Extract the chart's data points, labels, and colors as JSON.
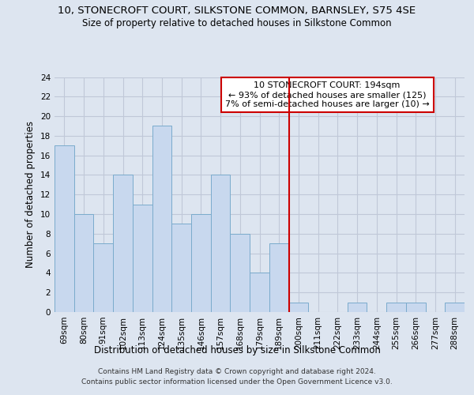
{
  "title": "10, STONECROFT COURT, SILKSTONE COMMON, BARNSLEY, S75 4SE",
  "subtitle": "Size of property relative to detached houses in Silkstone Common",
  "xlabel": "Distribution of detached houses by size in Silkstone Common",
  "ylabel": "Number of detached properties",
  "footer_line1": "Contains HM Land Registry data © Crown copyright and database right 2024.",
  "footer_line2": "Contains public sector information licensed under the Open Government Licence v3.0.",
  "categories": [
    "69sqm",
    "80sqm",
    "91sqm",
    "102sqm",
    "113sqm",
    "124sqm",
    "135sqm",
    "146sqm",
    "157sqm",
    "168sqm",
    "179sqm",
    "189sqm",
    "200sqm",
    "211sqm",
    "222sqm",
    "233sqm",
    "244sqm",
    "255sqm",
    "266sqm",
    "277sqm",
    "288sqm"
  ],
  "values": [
    17,
    10,
    7,
    14,
    11,
    19,
    9,
    10,
    14,
    8,
    4,
    7,
    1,
    0,
    0,
    1,
    0,
    1,
    1,
    0,
    1
  ],
  "bar_color": "#c8d8ee",
  "bar_edge_color": "#7aabcc",
  "grid_color": "#c0c8d8",
  "annotation_text": "10 STONECROFT COURT: 194sqm\n← 93% of detached houses are smaller (125)\n7% of semi-detached houses are larger (10) →",
  "annotation_box_facecolor": "#ffffff",
  "annotation_box_edgecolor": "#cc0000",
  "vline_color": "#cc0000",
  "vline_x_idx": 11.5,
  "ylim": [
    0,
    24
  ],
  "yticks": [
    0,
    2,
    4,
    6,
    8,
    10,
    12,
    14,
    16,
    18,
    20,
    22,
    24
  ],
  "background_color": "#dde5f0",
  "title_fontsize": 9.5,
  "subtitle_fontsize": 8.5,
  "xlabel_fontsize": 8.5,
  "ylabel_fontsize": 8.5,
  "tick_fontsize": 7.5,
  "annotation_fontsize": 8,
  "footer_fontsize": 6.5
}
